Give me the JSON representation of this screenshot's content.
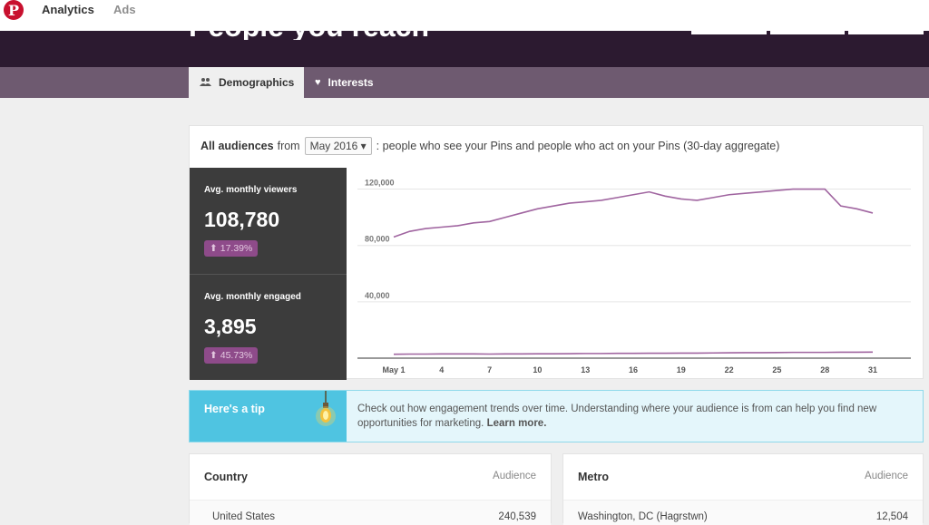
{
  "nav": {
    "analytics": "Analytics",
    "ads": "Ads"
  },
  "hero": {
    "title": "People you reach"
  },
  "tabs": [
    {
      "label": "Demographics",
      "icon": "people-icon",
      "selected": true
    },
    {
      "label": "Interests",
      "icon": "heart-icon",
      "selected": false
    }
  ],
  "audience": {
    "prefix": "All audiences",
    "from": "from",
    "period": "May 2016",
    "suffix": ": people who see your Pins and people who act on your Pins (30-day aggregate)"
  },
  "stats": {
    "viewers": {
      "label": "Avg. monthly viewers",
      "value": "108,780",
      "change": "17.39%"
    },
    "engaged": {
      "label": "Avg. monthly engaged",
      "value": "3,895",
      "change": "45.73%"
    }
  },
  "chart_data": {
    "type": "line",
    "y_ticks": [
      "120,000",
      "80,000",
      "40,000"
    ],
    "ylim": [
      0,
      130000
    ],
    "x_ticks": [
      {
        "day": 1,
        "label": "May 1"
      },
      {
        "day": 4,
        "label": "4"
      },
      {
        "day": 7,
        "label": "7"
      },
      {
        "day": 10,
        "label": "10"
      },
      {
        "day": 13,
        "label": "13"
      },
      {
        "day": 16,
        "label": "16"
      },
      {
        "day": 19,
        "label": "19"
      },
      {
        "day": 22,
        "label": "22"
      },
      {
        "day": 25,
        "label": "25"
      },
      {
        "day": 28,
        "label": "28"
      },
      {
        "day": 31,
        "label": "31"
      }
    ],
    "x": [
      1,
      2,
      3,
      4,
      5,
      6,
      7,
      8,
      9,
      10,
      11,
      12,
      13,
      14,
      15,
      16,
      17,
      18,
      19,
      20,
      21,
      22,
      23,
      24,
      25,
      26,
      27,
      28,
      29,
      30,
      31
    ],
    "series": [
      {
        "values": [
          86000,
          90000,
          92000,
          93000,
          94000,
          96000,
          97000,
          100000,
          103000,
          106000,
          108000,
          110000,
          111000,
          112000,
          114000,
          116000,
          118000,
          115000,
          113000,
          112000,
          114000,
          116000,
          117000,
          118000,
          119000,
          120000,
          120000,
          120000,
          108000,
          106000,
          103000
        ]
      },
      {
        "values": [
          2800,
          2900,
          2900,
          3000,
          3000,
          3000,
          2900,
          3000,
          3000,
          3100,
          3100,
          3200,
          3300,
          3300,
          3400,
          3400,
          3500,
          3500,
          3600,
          3600,
          3700,
          3800,
          3900,
          3900,
          4000,
          4100,
          4100,
          4100,
          4200,
          4200,
          4300
        ]
      }
    ],
    "line_color": "#a065a0"
  },
  "tip": {
    "title": "Here's a tip",
    "text": "Check out how engagement trends over time. Understanding where your audience is from can help you find new opportunities for marketing.",
    "link": "Learn more."
  },
  "country": {
    "title": "Country",
    "col": "Audience",
    "rows": [
      {
        "name": "United States",
        "value": "240,539"
      }
    ]
  },
  "metro": {
    "title": "Metro",
    "col": "Audience",
    "rows": [
      {
        "name": "Washington, DC (Hagrstwn)",
        "value": "12,504"
      }
    ]
  }
}
